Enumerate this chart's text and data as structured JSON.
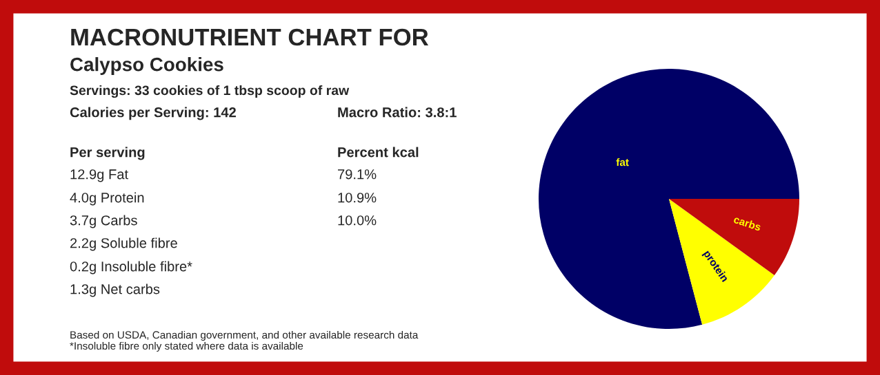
{
  "chart_data": {
    "type": "pie",
    "title": "MACRONUTRIENT CHART FOR",
    "subtitle": "Calypso Cookies",
    "categories": [
      "fat",
      "protein",
      "carbs"
    ],
    "values": [
      79.1,
      10.9,
      10.0
    ],
    "colors": [
      "#000066",
      "#ffff00",
      "#c00c0c"
    ],
    "legend": false,
    "annotations": [
      "Servings: 33 cookies of 1 tbsp scoop of raw",
      "Calories per Serving: 142",
      "Macro Ratio: 3.8:1",
      "Per serving",
      "Percent kcal",
      "12.9g Fat",
      "79.1%",
      "4.0g Protein",
      "10.9%",
      "3.7g Carbs",
      "10.0%",
      "2.2g Soluble fibre",
      "0.2g Insoluble fibre*",
      "1.3g Net carbs",
      "Based on USDA, Canadian government, and other available research data",
      "*Insoluble fibre only stated where data is available"
    ]
  }
}
